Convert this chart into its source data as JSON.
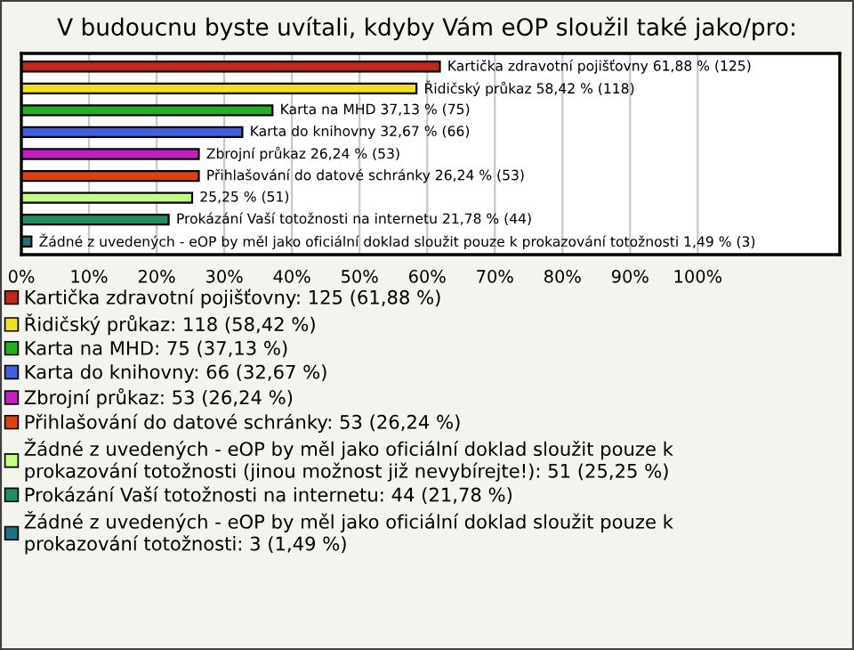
{
  "chart_data": {
    "type": "bar",
    "orientation": "horizontal",
    "stacked": true,
    "title": "V budoucnu byste uvítali, kdyby Vám eOP sloužil také jako/pro:",
    "categories": [
      null,
      null,
      null,
      null,
      null,
      null,
      null,
      null,
      null
    ],
    "series": [
      {
        "name": "Kartička zdravotní pojišťovny: 125 (61,88 %)",
        "color": "#c0281c",
        "values": [
          61.88,
          null,
          null,
          null,
          null,
          null,
          null,
          null,
          null
        ],
        "value_labels": [
          "Kartička zdravotní pojišťovny 61,88 % (125)",
          null,
          null,
          null,
          null,
          null,
          null,
          null,
          null
        ]
      },
      {
        "name": "Řidičský průkaz: 118 (58,42 %)",
        "color": "#f0e020",
        "values": [
          null,
          58.42,
          null,
          null,
          null,
          null,
          null,
          null,
          null
        ],
        "value_labels": [
          null,
          "Řidičský průkaz 58,42 % (118)",
          null,
          null,
          null,
          null,
          null,
          null,
          null
        ]
      },
      {
        "name": "Karta na MHD: 75 (37,13 %)",
        "color": "#20b020",
        "values": [
          null,
          null,
          37.13,
          null,
          null,
          null,
          null,
          null,
          null
        ],
        "value_labels": [
          null,
          null,
          "Karta na MHD 37,13 % (75)",
          null,
          null,
          null,
          null,
          null,
          null
        ]
      },
      {
        "name": "Karta do knihovny: 66 (32,67 %)",
        "color": "#4060e0",
        "values": [
          null,
          null,
          null,
          32.67,
          null,
          null,
          null,
          null,
          null
        ],
        "value_labels": [
          null,
          null,
          null,
          "Karta do knihovny 32,67 % (66)",
          null,
          null,
          null,
          null,
          null
        ]
      },
      {
        "name": "Zbrojní průkaz: 53 (26,24 %)",
        "color": "#c020c0",
        "values": [
          null,
          null,
          null,
          null,
          26.24,
          null,
          null,
          null,
          null
        ],
        "value_labels": [
          null,
          null,
          null,
          null,
          "Zbrojní průkaz 26,24 % (53)",
          null,
          null,
          null,
          null
        ]
      },
      {
        "name": "Přihlašování do datové schránky: 53 (26,24 %)",
        "color": "#e04010",
        "values": [
          null,
          null,
          null,
          null,
          null,
          26.24,
          null,
          null,
          null
        ],
        "value_labels": [
          null,
          null,
          null,
          null,
          null,
          "Přihlašování do datové schránky 26,24 % (53)",
          null,
          null,
          null
        ]
      },
      {
        "name": "Žádné z uvedených - eOP by měl jako oficiální doklad sloužit pouze k\nprokazování totožnosti (jinou možnost již nevybírejte!): 51 (25,25 %)",
        "color": "#c0ff80",
        "values": [
          null,
          null,
          null,
          null,
          null,
          null,
          25.25,
          null,
          null
        ],
        "value_labels": [
          null,
          null,
          null,
          null,
          null,
          null,
          "25,25 % (51)",
          null,
          null
        ]
      },
      {
        "name": "Prokázání Vaší totožnosti na internetu: 44 (21,78 %)",
        "color": "#209060",
        "values": [
          null,
          null,
          null,
          null,
          null,
          null,
          null,
          21.78,
          null
        ],
        "value_labels": [
          null,
          null,
          null,
          null,
          null,
          null,
          null,
          "Prokázání Vaší totožnosti na internetu 21,78 % (44)",
          null
        ]
      },
      {
        "name": "Žádné z uvedených - eOP by měl jako oficiální doklad sloužit pouze k\nprokazování totožnosti: 3 (1,49 %)",
        "color": "#207080",
        "values": [
          null,
          null,
          null,
          null,
          null,
          null,
          null,
          null,
          1.49
        ],
        "value_labels": [
          null,
          null,
          null,
          null,
          null,
          null,
          null,
          null,
          "Žádné z uvedených - eOP by měl jako oficiální doklad sloužit pouze k prokazování totožnosti 1,49 % (3)"
        ]
      }
    ],
    "xlim": [
      0,
      121
    ],
    "xticks": [
      {
        "value": 0,
        "label": "0%"
      },
      {
        "value": 10,
        "label": "10%"
      },
      {
        "value": 20,
        "label": "20%"
      },
      {
        "value": 30,
        "label": "30%"
      },
      {
        "value": 40,
        "label": "40%"
      },
      {
        "value": 50,
        "label": "50%"
      },
      {
        "value": 60,
        "label": "60%"
      },
      {
        "value": 70,
        "label": "70%"
      },
      {
        "value": 80,
        "label": "80%"
      },
      {
        "value": 90,
        "label": "90%"
      },
      {
        "value": 100,
        "label": "100%"
      }
    ],
    "grid": "x",
    "legend": "bottom"
  }
}
